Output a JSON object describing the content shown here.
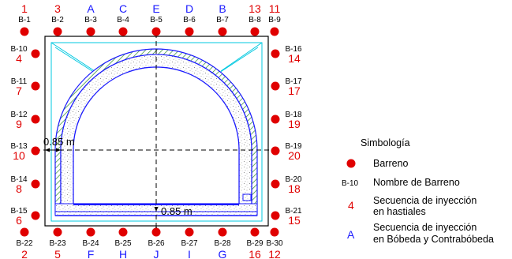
{
  "top_row": [
    {
      "seq": "1",
      "color": "red",
      "name": "B-1"
    },
    {
      "seq": "3",
      "color": "red",
      "name": "B-2"
    },
    {
      "seq": "A",
      "color": "blue",
      "name": "B-3"
    },
    {
      "seq": "C",
      "color": "blue",
      "name": "B-4"
    },
    {
      "seq": "E",
      "color": "blue",
      "name": "B-5"
    },
    {
      "seq": "D",
      "color": "blue",
      "name": "B-6"
    },
    {
      "seq": "B",
      "color": "blue",
      "name": "B-7"
    },
    {
      "seq": "13",
      "color": "red",
      "name": "B-8"
    },
    {
      "seq": "11",
      "color": "red",
      "name": "B-9"
    }
  ],
  "left_col": [
    {
      "seq": "4",
      "name": "B-10"
    },
    {
      "seq": "7",
      "name": "B-11"
    },
    {
      "seq": "9",
      "name": "B-12"
    },
    {
      "seq": "10",
      "name": "B-13"
    },
    {
      "seq": "8",
      "name": "B-14"
    },
    {
      "seq": "6",
      "name": "B-15"
    }
  ],
  "right_col": [
    {
      "seq": "14",
      "name": "B-16"
    },
    {
      "seq": "17",
      "name": "B-17"
    },
    {
      "seq": "19",
      "name": "B-18"
    },
    {
      "seq": "20",
      "name": "B-19"
    },
    {
      "seq": "18",
      "name": "B-20"
    },
    {
      "seq": "15",
      "name": "B-21"
    }
  ],
  "bottom_row": [
    {
      "seq": "2",
      "color": "red",
      "name": "B-22"
    },
    {
      "seq": "5",
      "color": "red",
      "name": "B-23"
    },
    {
      "seq": "F",
      "color": "blue",
      "name": "B-24"
    },
    {
      "seq": "H",
      "color": "blue",
      "name": "B-25"
    },
    {
      "seq": "J",
      "color": "blue",
      "name": "B-26"
    },
    {
      "seq": "I",
      "color": "blue",
      "name": "B-27"
    },
    {
      "seq": "G",
      "color": "blue",
      "name": "B-28"
    },
    {
      "seq": "16",
      "color": "red",
      "name": "B-29"
    },
    {
      "seq": "12",
      "color": "red",
      "name": "B-30"
    }
  ],
  "dimensions": {
    "horizontal": "0.85 m",
    "vertical": "0.85 m"
  },
  "legend": {
    "title": "Simbología",
    "barreno": "Barreno",
    "nombre_example": "B-10",
    "nombre": "Nombre de Barreno",
    "seq_hastiales_example": "4",
    "seq_hastiales_line1": "Secuencia de inyección",
    "seq_hastiales_line2": "en hastiales",
    "seq_boveda_example": "A",
    "seq_boveda_line1": "Secuencia de inyección",
    "seq_boveda_line2": "en Bóbeda y Contrabóbeda"
  },
  "colors": {
    "barreno": "#e00000",
    "seq_red": "#e00000",
    "seq_blue": "#1a1aff",
    "lining": "#1a1aff",
    "outline": "#00c8e0",
    "hatch": "#2a8a2a"
  }
}
